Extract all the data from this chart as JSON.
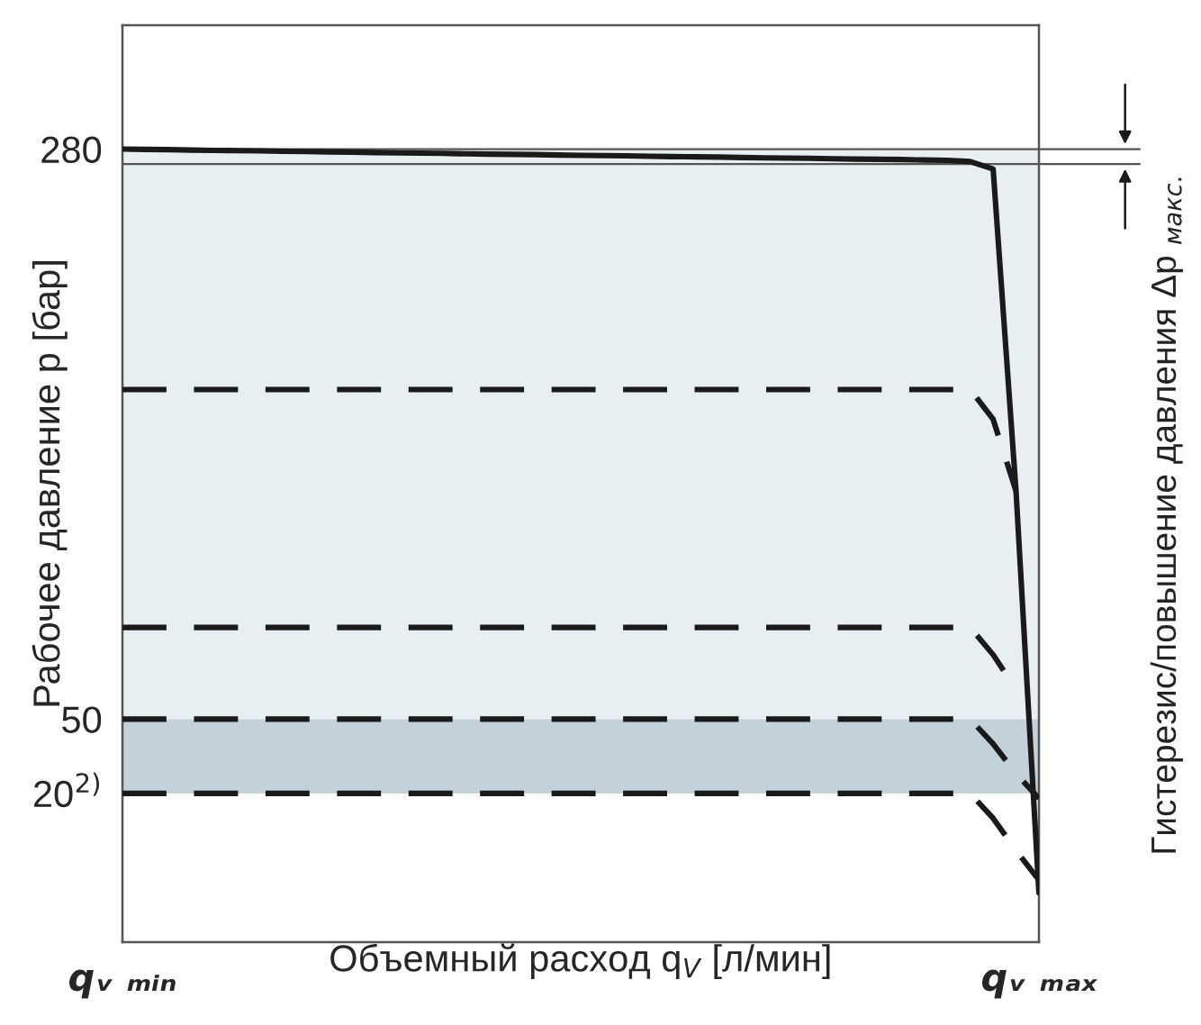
{
  "chart_data": {
    "type": "line",
    "xlabel": "Объемный расход q$_{V}$ [л/мин]",
    "ylabel": "Рабочее давление р [бар]",
    "categories": [
      "qᵥ ₘᵢₙ",
      null,
      null,
      null,
      null,
      null,
      null,
      null,
      null,
      null,
      null,
      null,
      null,
      null,
      null,
      null,
      null,
      null,
      null,
      null,
      null,
      null,
      null,
      null,
      null,
      null,
      null,
      null,
      null,
      null,
      null,
      null,
      null,
      null,
      null,
      null,
      null,
      null,
      null,
      null,
      "qᵥ ₘₐₓ"
    ],
    "ylim": [
      -40,
      330
    ],
    "yticks": [
      280,
      50,
      {
        "value": 20,
        "label": "20$^{2)}$"
      }
    ],
    "grid": false,
    "series": [
      {
        "color": "#1a1a1a",
        "line_style": "solid",
        "values": [
          280,
          279.9,
          279.8,
          279.6,
          279.5,
          279.4,
          279.3,
          279.1,
          279,
          278.9,
          278.8,
          278.6,
          278.5,
          278.4,
          278.3,
          278.1,
          278,
          277.9,
          277.8,
          277.6,
          277.5,
          277.4,
          277.3,
          277.1,
          277,
          276.9,
          276.8,
          276.6,
          276.5,
          276.4,
          276.3,
          276.1,
          276,
          275.9,
          275.8,
          275.6,
          275.5,
          275,
          272,
          142,
          -20
        ]
      },
      {
        "color": "#1a1a1a",
        "line_style": "dashed",
        "values": [
          183,
          183,
          183,
          183,
          183,
          183,
          183,
          183,
          183,
          183,
          183,
          183,
          183,
          183,
          183,
          183,
          183,
          183,
          183,
          183,
          183,
          183,
          183,
          183,
          183,
          183,
          183,
          183,
          183,
          183,
          183,
          183,
          183,
          183,
          183,
          183,
          183,
          183,
          171,
          142,
          null
        ]
      },
      {
        "color": "#1a1a1a",
        "line_style": "dashed",
        "values": [
          87,
          87,
          87,
          87,
          87,
          87,
          87,
          87,
          87,
          87,
          87,
          87,
          87,
          87,
          87,
          87,
          87,
          87,
          87,
          87,
          87,
          87,
          87,
          87,
          87,
          87,
          87,
          87,
          87,
          87,
          87,
          87,
          87,
          87,
          87,
          87,
          87,
          87,
          76,
          62,
          null
        ]
      },
      {
        "color": "#1a1a1a",
        "line_style": "dashed",
        "values": [
          50,
          50,
          50,
          50,
          50,
          50,
          50,
          50,
          50,
          50,
          50,
          50,
          50,
          50,
          50,
          50,
          50,
          50,
          50,
          50,
          50,
          50,
          50,
          50,
          50,
          50,
          50,
          50,
          50,
          50,
          50,
          50,
          50,
          50,
          50,
          50,
          50,
          50,
          40,
          28,
          18
        ]
      },
      {
        "color": "#1a1a1a",
        "line_style": "dashed",
        "values": [
          20,
          20,
          20,
          20,
          20,
          20,
          20,
          20,
          20,
          20,
          20,
          20,
          20,
          20,
          20,
          20,
          20,
          20,
          20,
          20,
          20,
          20,
          20,
          20,
          20,
          20,
          20,
          20,
          20,
          20,
          20,
          20,
          20,
          20,
          20,
          20,
          20,
          20,
          10,
          -3,
          -15
        ]
      }
    ],
    "bands": [
      {
        "axis": "y",
        "from": 50,
        "to": 280,
        "color": "#e8eff3"
      },
      {
        "axis": "y",
        "from": 20,
        "to": 50,
        "color": "#c3d1da"
      }
    ],
    "ref_lines": [
      {
        "axis": "y",
        "value": 280,
        "color": "#555555"
      },
      {
        "axis": "y",
        "value": 274,
        "color": "#555555"
      }
    ],
    "annotations": [
      "Гистерезис/повышение давления Δp $_{макс.}$"
    ]
  }
}
